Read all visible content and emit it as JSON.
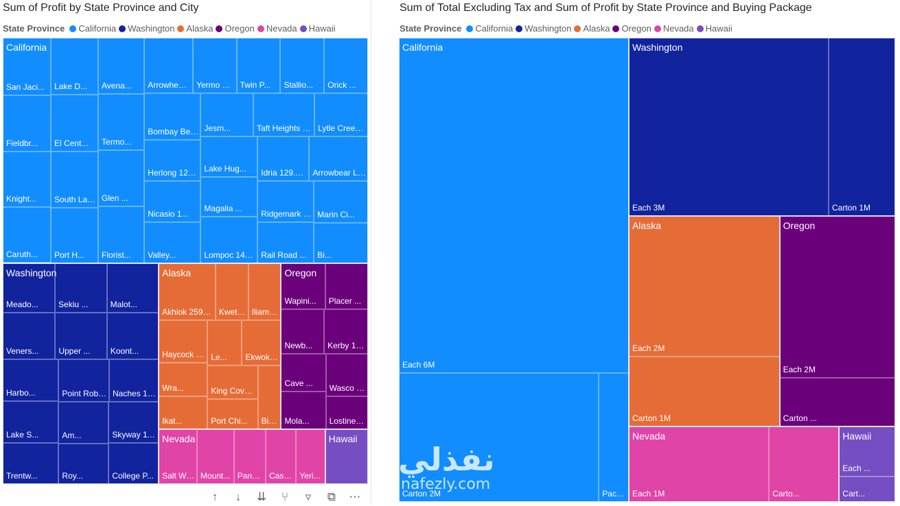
{
  "visual_left": {
    "title": "Sum of Profit by State Province and City",
    "legend_title": "State Province",
    "legend_items": [
      {
        "label": "California",
        "color": "#118dff"
      },
      {
        "label": "Washington",
        "color": "#12239e"
      },
      {
        "label": "Alaska",
        "color": "#e66c37"
      },
      {
        "label": "Oregon",
        "color": "#6b007b"
      },
      {
        "label": "Nevada",
        "color": "#e044a7"
      },
      {
        "label": "Hawaii",
        "color": "#744ec2"
      }
    ]
  },
  "visual_right": {
    "title": "Sum of Total Excluding Tax and Sum of Profit by State Province and Buying Package",
    "legend_title": "State Province",
    "legend_items": [
      {
        "label": "California",
        "color": "#118dff"
      },
      {
        "label": "Washington",
        "color": "#12239e"
      },
      {
        "label": "Alaska",
        "color": "#e66c37"
      },
      {
        "label": "Oregon",
        "color": "#6b007b"
      },
      {
        "label": "Nevada",
        "color": "#e044a7"
      },
      {
        "label": "Hawaii",
        "color": "#744ec2"
      }
    ]
  },
  "toolbar": {
    "icons": [
      "arrow-up-icon",
      "arrow-down-icon",
      "double-arrow-down-icon",
      "expand-hierarchy-icon",
      "filter-icon",
      "focus-mode-icon",
      "more-options-icon"
    ]
  },
  "watermark": {
    "logo": "نفذلي",
    "url": "nafezly.com"
  },
  "chart_data": [
    {
      "type": "treemap",
      "title": "Sum of Profit by State Province and City",
      "legend_title": "State Province",
      "groups": [
        {
          "name": "California",
          "color": "#118dff",
          "value": 6275,
          "items": [
            {
              "label": "San Jaci...",
              "value": 155
            },
            {
              "label": "Fieldbr...",
              "value": 150
            },
            {
              "label": "Knight...",
              "value": 150
            },
            {
              "label": "Caruth...",
              "value": 150
            },
            {
              "label": "Lake D...",
              "value": 150
            },
            {
              "label": "El Cent...",
              "value": 150
            },
            {
              "label": "South Laguna...",
              "value": 150
            },
            {
              "label": "Port H...",
              "value": 145
            },
            {
              "label": "Avena...",
              "value": 145
            },
            {
              "label": "Termo...",
              "value": 145
            },
            {
              "label": "Glen ...",
              "value": 145
            },
            {
              "label": "Florist...",
              "value": 145
            },
            {
              "label": "Arrowhead Hi...",
              "value": 150
            },
            {
              "label": "Yermo 134.56K",
              "value": 134.56
            },
            {
              "label": "Twin P...",
              "value": 135
            },
            {
              "label": "Stallio...",
              "value": 135
            },
            {
              "label": "Orick ...",
              "value": 135
            },
            {
              "label": "Bombay Beac...",
              "value": 148
            },
            {
              "label": "Herlong 129....",
              "value": 129.5
            },
            {
              "label": "Nicasio 1...",
              "value": 130
            },
            {
              "label": "Valley...",
              "value": 128
            },
            {
              "label": "Jesm...",
              "value": 127
            },
            {
              "label": "Taft Heights 1...",
              "value": 148
            },
            {
              "label": "Lytle Creek 1...",
              "value": 129.2
            },
            {
              "label": "Lake Hug...",
              "value": 129
            },
            {
              "label": "Magalia ...",
              "value": 126
            },
            {
              "label": "Lompoc 147....",
              "value": 147.5
            },
            {
              "label": "Idria 129.01K",
              "value": 129.01
            },
            {
              "label": "Arrowbear La...",
              "value": 147
            },
            {
              "label": "Ridgemark 1...",
              "value": 128.8
            },
            {
              "label": "Rail Road ...",
              "value": 128.5
            },
            {
              "label": "Marin Ci...",
              "value": 125
            },
            {
              "label": "Bi...",
              "value": 122
            }
          ]
        },
        {
          "name": "Washington",
          "color": "#12239e",
          "value": 2630,
          "items": [
            {
              "label": "Meado...",
              "value": 151
            },
            {
              "label": "Sekiu ...",
              "value": 150
            },
            {
              "label": "Malot...",
              "value": 150
            },
            {
              "label": "Veners...",
              "value": 140
            },
            {
              "label": "Upper ...",
              "value": 138
            },
            {
              "label": "Koont...",
              "value": 138
            },
            {
              "label": "Harbo...",
              "value": 135
            },
            {
              "label": "Lake S...",
              "value": 135
            },
            {
              "label": "Trentw...",
              "value": 134
            },
            {
              "label": "Point Robert...",
              "value": 125
            },
            {
              "label": "Naches 122....",
              "value": 122.5
            },
            {
              "label": "Am...",
              "value": 120
            },
            {
              "label": "Roy...",
              "value": 118
            },
            {
              "label": "Skyway 119....",
              "value": 119.5
            },
            {
              "label": "College P...",
              "value": 118
            }
          ]
        },
        {
          "name": "Alaska",
          "color": "#e66c37",
          "value": 1550,
          "items": [
            {
              "label": "Akhiok 259.55K",
              "value": 259.55
            },
            {
              "label": "Kwethl...",
              "value": 150
            },
            {
              "label": "Iliamna...",
              "value": 150
            },
            {
              "label": "Haycock 168.00K",
              "value": 168.0
            },
            {
              "label": "Wra...",
              "value": 130
            },
            {
              "label": "Ikat...",
              "value": 128
            },
            {
              "label": "Le...",
              "value": 126
            },
            {
              "label": "Ekwok 142.94K",
              "value": 142.94
            },
            {
              "label": "King Cove 135.4...",
              "value": 135.4
            },
            {
              "label": "Port Chi...",
              "value": 120
            },
            {
              "label": "Biorka ...",
              "value": 118
            }
          ]
        },
        {
          "name": "Oregon",
          "color": "#6b007b",
          "value": 1100,
          "items": [
            {
              "label": "Wapini...",
              "value": 155
            },
            {
              "label": "Placer ...",
              "value": 150
            },
            {
              "label": "Newb...",
              "value": 145
            },
            {
              "label": "Kerby 148....",
              "value": 148
            },
            {
              "label": "Cave ...",
              "value": 128
            },
            {
              "label": "Mola...",
              "value": 126
            },
            {
              "label": "Wasco 13...",
              "value": 135
            },
            {
              "label": "Lostine 104.50K",
              "value": 104.5
            }
          ]
        },
        {
          "name": "Nevada",
          "color": "#e044a7",
          "value": 700,
          "items": [
            {
              "label": "Salt Well...",
              "value": 145
            },
            {
              "label": "Mount...",
              "value": 140
            },
            {
              "label": "Panaca 120....",
              "value": 120.5
            },
            {
              "label": "Caselton 11...",
              "value": 115
            },
            {
              "label": "Yeri...",
              "value": 110
            }
          ]
        },
        {
          "name": "Hawaii",
          "color": "#744ec2",
          "value": 180,
          "items": []
        }
      ]
    },
    {
      "type": "treemap",
      "title": "Sum of Total Excluding Tax and Sum of Profit by State Province and Buying Package",
      "legend_title": "State Province",
      "groups": [
        {
          "name": "California",
          "color": "#118dff",
          "value": 10.1,
          "items": [
            {
              "label": "Each 6M",
              "value": 6
            },
            {
              "label": "Carton 2M",
              "value": 2
            },
            {
              "label": "Packet 0M",
              "value": 0.3
            }
          ]
        },
        {
          "name": "Washington",
          "color": "#12239e",
          "value": 4.5,
          "items": [
            {
              "label": "Each 3M",
              "value": 3
            },
            {
              "label": "Carton 1M",
              "value": 1
            }
          ]
        },
        {
          "name": "Alaska",
          "color": "#e66c37",
          "value": 3.0,
          "items": [
            {
              "label": "Each 2M",
              "value": 2
            },
            {
              "label": "Carton 1M",
              "value": 1
            }
          ]
        },
        {
          "name": "Oregon",
          "color": "#6b007b",
          "value": 2.3,
          "items": [
            {
              "label": "Each 2M",
              "value": 2
            },
            {
              "label": "Carton ...",
              "value": 0.6
            }
          ]
        },
        {
          "name": "Nevada",
          "color": "#e044a7",
          "value": 1.5,
          "items": [
            {
              "label": "Each 1M",
              "value": 1
            },
            {
              "label": "Carto...",
              "value": 0.5
            }
          ]
        },
        {
          "name": "Hawaii",
          "color": "#744ec2",
          "value": 0.4,
          "items": [
            {
              "label": "Each ...",
              "value": 0.2
            },
            {
              "label": "Cart...",
              "value": 0.1
            }
          ]
        }
      ]
    }
  ]
}
